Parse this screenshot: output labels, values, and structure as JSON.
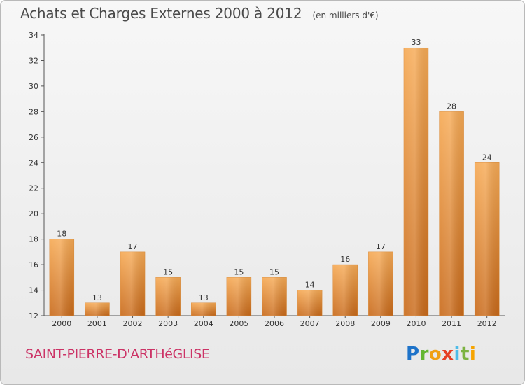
{
  "chart_data": {
    "type": "bar",
    "title": "Achats et Charges Externes 2000 à 2012",
    "subtitle": "(en milliers d'€)",
    "categories": [
      "2000",
      "2001",
      "2002",
      "2003",
      "2004",
      "2005",
      "2006",
      "2007",
      "2008",
      "2009",
      "2010",
      "2011",
      "2012"
    ],
    "values": [
      18,
      13,
      17,
      15,
      13,
      15,
      15,
      14,
      16,
      17,
      33,
      28,
      24
    ],
    "ylim": [
      12,
      34
    ],
    "yticks": [
      12,
      14,
      16,
      18,
      20,
      22,
      24,
      26,
      28,
      30,
      32,
      34
    ],
    "grid": false,
    "bar_color_top": "#f6aa55",
    "bar_color_bottom": "#c96a1a"
  },
  "footer": {
    "location": "SAINT-PIERRE-D'ARTHéGLISE",
    "brand": [
      "P",
      "r",
      "o",
      "x",
      "i",
      "t",
      "i"
    ]
  }
}
